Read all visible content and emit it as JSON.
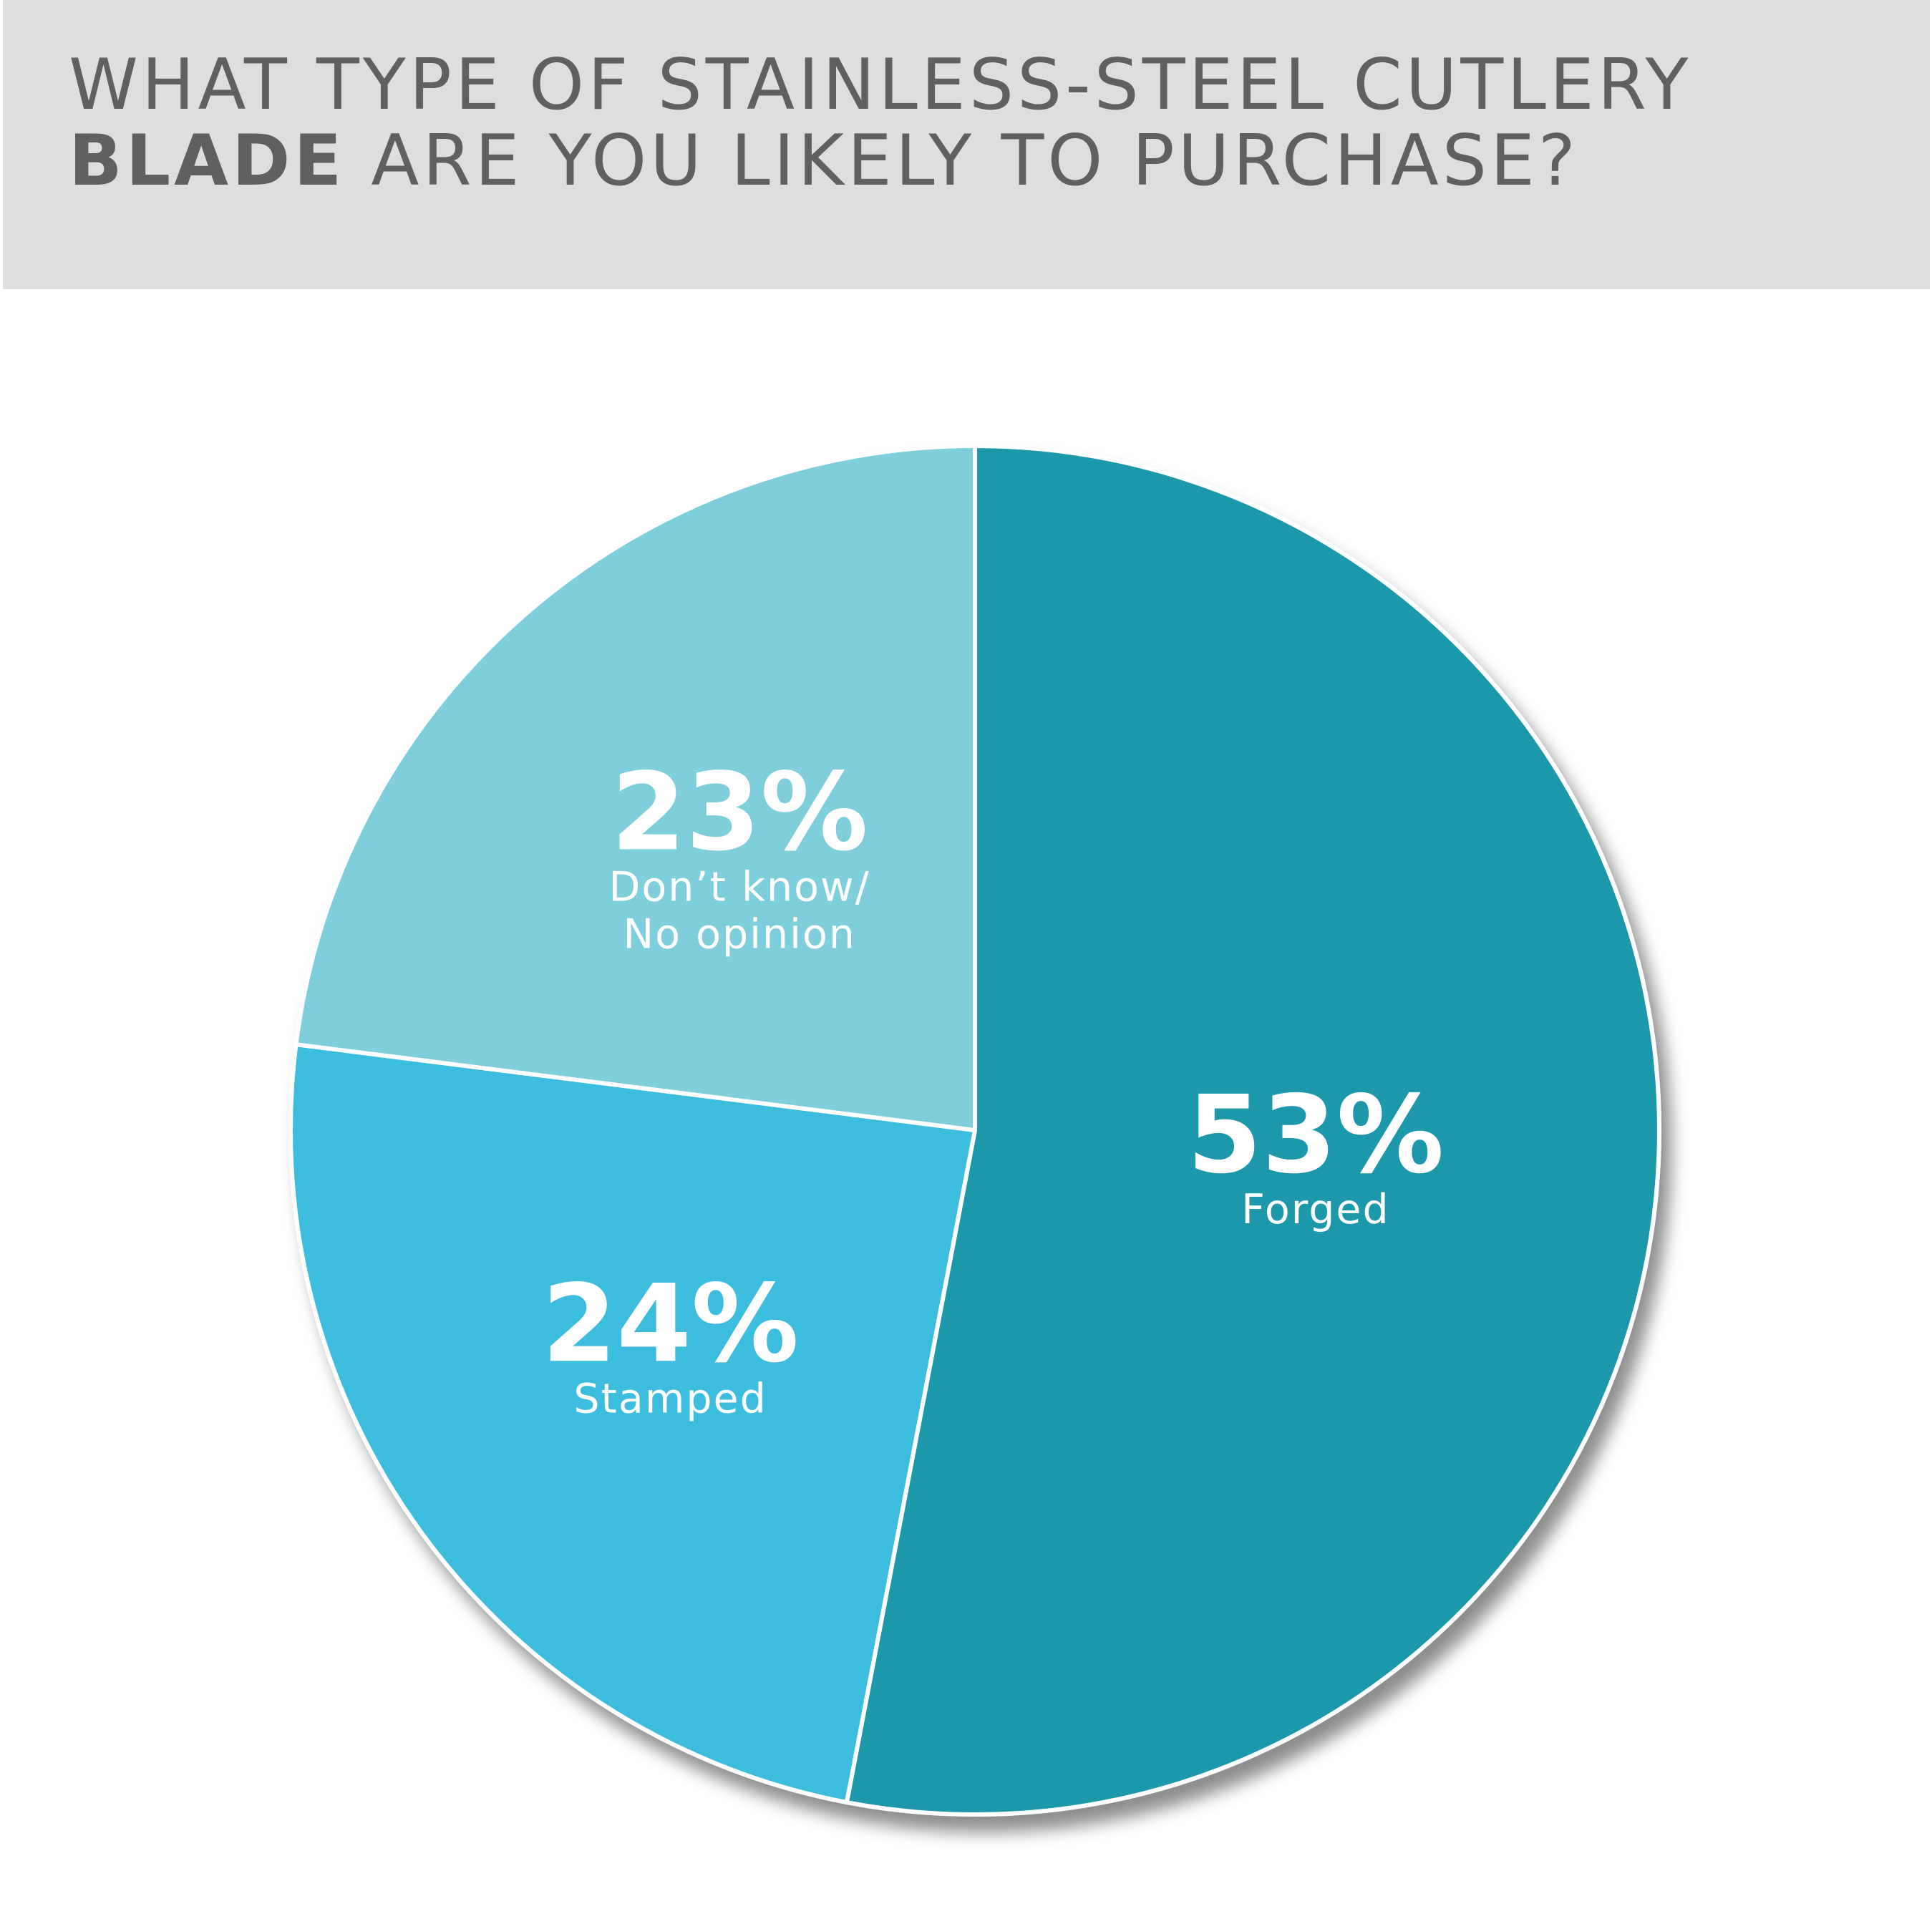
{
  "header": {
    "title_line1": "WHAT TYPE OF STAINLESS-STEEL CUTLERY",
    "title_bold": "BLADE",
    "title_line2_rest": " ARE YOU LIKELY TO PURCHASE?"
  },
  "colors": {
    "header_background": "#dedede",
    "header_text": "#5f6062",
    "slice_border": "#ffffff"
  },
  "chart_data": {
    "type": "pie",
    "title": "WHAT TYPE OF STAINLESS-STEEL CUTLERY BLADE ARE YOU LIKELY TO PURCHASE?",
    "unit": "%",
    "start": "12 o'clock",
    "direction": "clockwise",
    "legend": "none",
    "slices": [
      {
        "label_lines": [
          "Forged"
        ],
        "value": 53,
        "pct_text": "53%",
        "color": "#1f98aa"
      },
      {
        "label_lines": [
          "Stamped"
        ],
        "value": 24,
        "pct_text": "24%",
        "color": "#3ebddd"
      },
      {
        "label_lines": [
          "Don’t know/",
          "No opinion"
        ],
        "value": 23,
        "pct_text": "23%",
        "color": "#7ecfdb"
      }
    ]
  }
}
